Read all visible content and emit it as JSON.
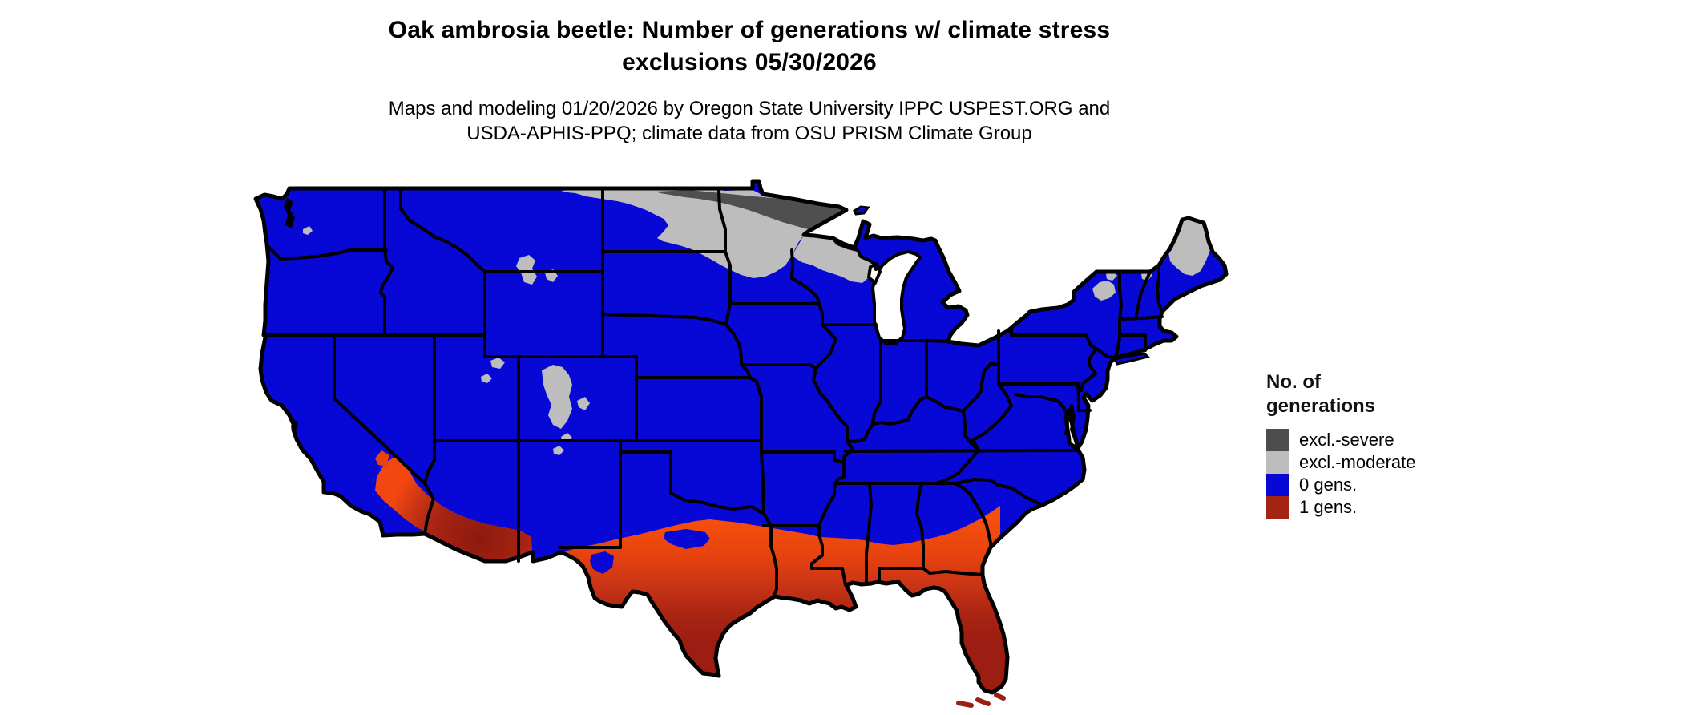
{
  "title": {
    "line1": "Oak ambrosia beetle: Number of generations w/ climate stress",
    "line2": "exclusions 05/30/2026"
  },
  "subtitle": {
    "line1": "Maps and modeling 01/20/2026 by Oregon State University IPPC USPEST.ORG and",
    "line2": "USDA-APHIS-PPQ; climate data from OSU PRISM Climate Group"
  },
  "legend": {
    "title_line1": "No. of",
    "title_line2": "generations",
    "items": [
      {
        "label": "excl.-severe",
        "color": "#4d4d4d"
      },
      {
        "label": "excl.-moderate",
        "color": "#bdbdbd"
      },
      {
        "label": "0 gens.",
        "color": "#0707d6"
      },
      {
        "label": "1 gens.",
        "color": "#a32413"
      }
    ]
  },
  "colors": {
    "background": "#ffffff",
    "border_black": "#000000",
    "water_white": "#ffffff",
    "gens0_blue": "#0707d6",
    "excl_moderate_gray": "#bdbdbd",
    "excl_severe_gray": "#4f4f4f",
    "heat_orange_bright": "#f5500c",
    "heat_orange": "#f2470e",
    "heat_orange_deep": "#e8430f",
    "heat_mid_red": "#c93415",
    "heat_red": "#a82413",
    "heat_dark_red": "#9c1d12",
    "heat_deepest_red": "#8c1a0e"
  },
  "map": {
    "type": "choropleth-us-map",
    "regions": [
      {
        "value": "excl.-severe",
        "where": "far-northern North Dakota and northern Minnesota along the Canadian border"
      },
      {
        "value": "excl.-moderate",
        "where": "northern plains (ND/MN), northern Wisconsin, upper Michigan, Rocky Mountain high country, Adirondacks, northern Maine"
      },
      {
        "value": "0 gens.",
        "where": "most of the continental United States"
      },
      {
        "value": "1 gens.",
        "where": "southern Arizona and SE California deserts, southern Texas, Gulf Coast, Florida, southern Atlantic coastal plain"
      }
    ]
  }
}
